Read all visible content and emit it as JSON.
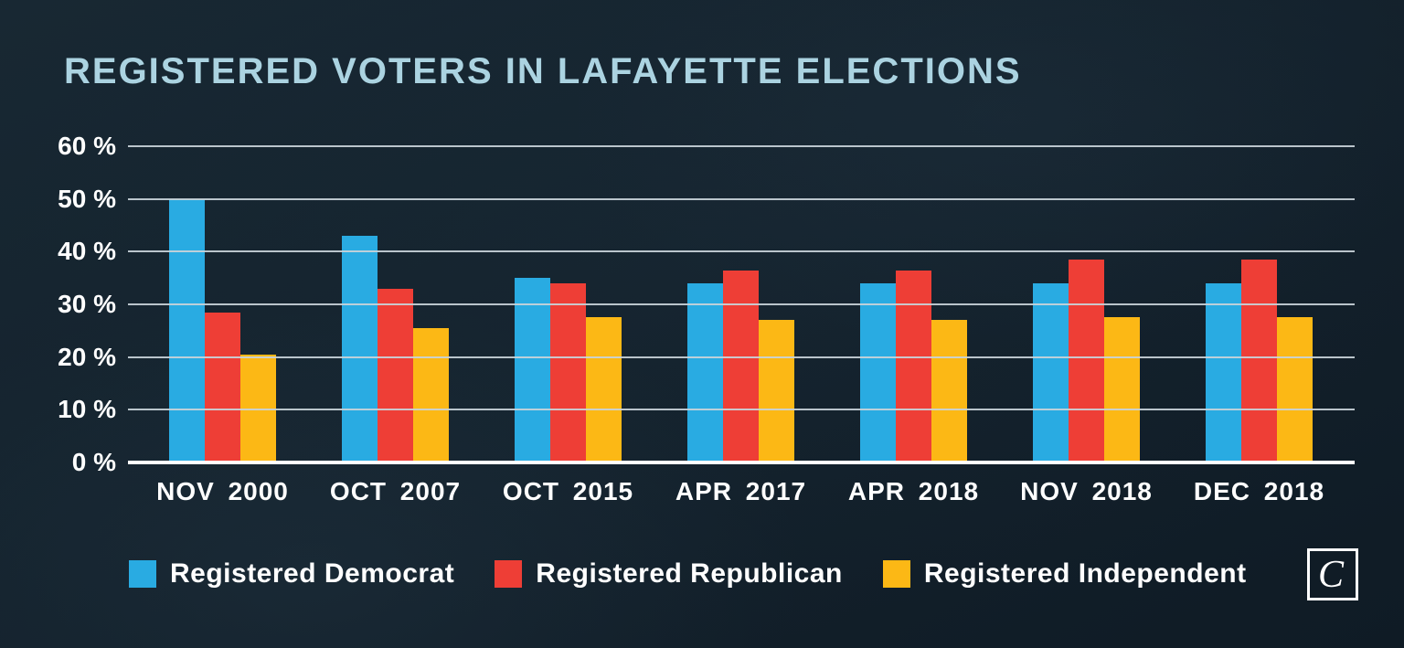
{
  "chart_data": {
    "type": "bar",
    "title": "REGISTERED VOTERS IN LAFAYETTE ELECTIONS",
    "categories": [
      "NOV 2000",
      "OCT 2007",
      "OCT 2015",
      "APR 2017",
      "APR 2018",
      "NOV 2018",
      "DEC 2018"
    ],
    "series": [
      {
        "key": "democrat",
        "name": "Registered Democrat",
        "color": "#29abe2",
        "values": [
          50,
          43,
          35,
          34,
          34,
          34,
          34
        ]
      },
      {
        "key": "republican",
        "name": "Registered Republican",
        "color": "#ee3e36",
        "values": [
          28.5,
          33,
          34,
          36.5,
          36.5,
          38.5,
          38.5
        ]
      },
      {
        "key": "independent",
        "name": "Registered Independent",
        "color": "#fcb815",
        "values": [
          20.5,
          25.5,
          27.5,
          27,
          27,
          27.5,
          27.5
        ]
      }
    ],
    "xlabel": "",
    "ylabel": "",
    "ylim": [
      0,
      60
    ],
    "y_tick_step": 10,
    "y_tick_labels": [
      "60 %",
      "50 %",
      "40 %",
      "30 %",
      "20 %",
      "10 %",
      "0 %"
    ],
    "grid": true,
    "legend_position": "bottom"
  },
  "logo": {
    "text": "C"
  },
  "colors": {
    "background": "#14222d",
    "title_text": "#abd3e1",
    "axis_text": "#ffffff",
    "gridline": "#c9d3d9",
    "zero_axis": "#ffffff",
    "legend_text": "#ffffff",
    "logo_border": "#ffffff",
    "logo_text": "#ffffff"
  }
}
